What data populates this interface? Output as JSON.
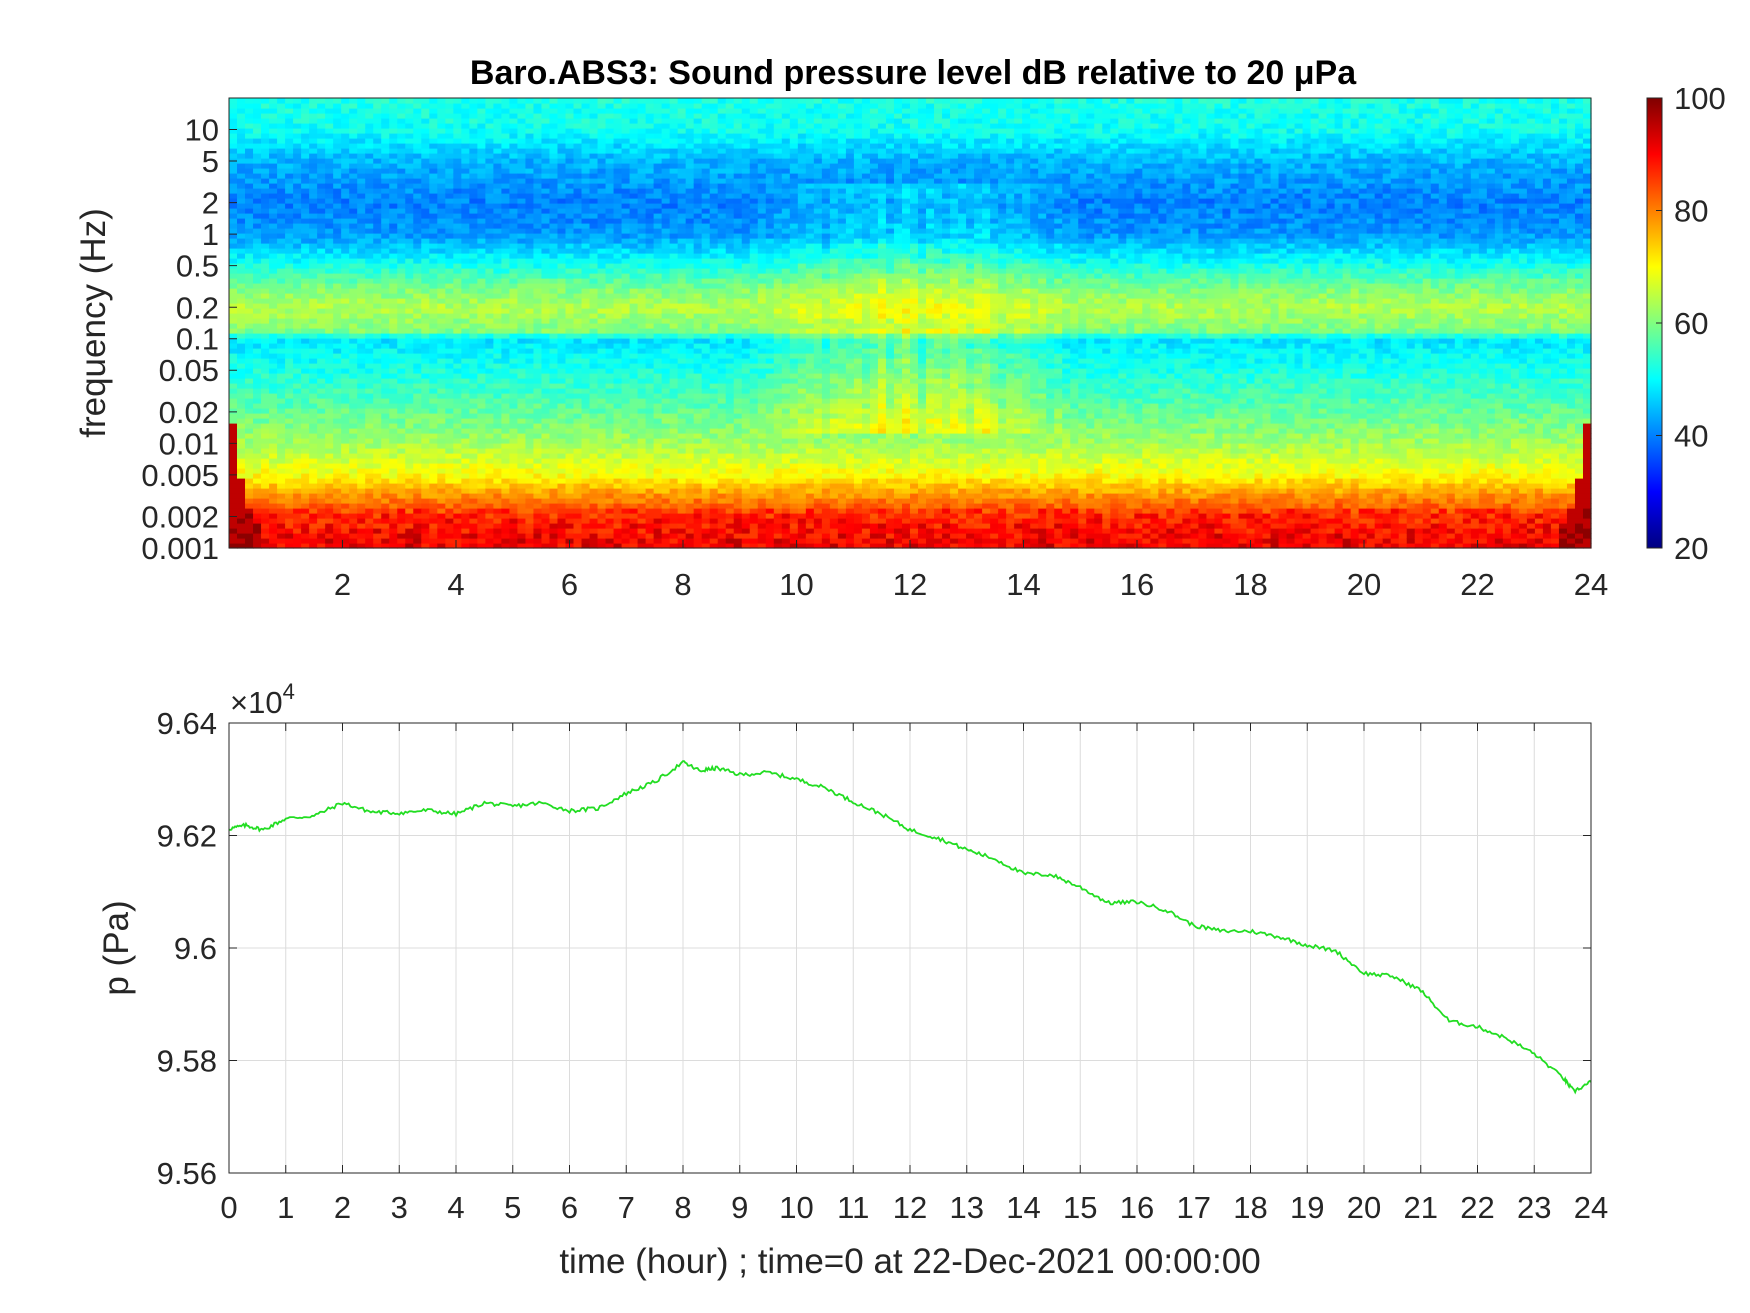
{
  "chart_data": [
    {
      "type": "heatmap",
      "title": "Baro.ABS3: Sound pressure level dB relative to 20 μPa",
      "xlabel": "",
      "ylabel": "frequency (Hz)",
      "x_range": [
        0,
        24
      ],
      "x_ticks": [
        2,
        4,
        6,
        8,
        10,
        12,
        14,
        16,
        18,
        20,
        22,
        24
      ],
      "y_scale": "log",
      "y_range": [
        0.001,
        20
      ],
      "y_ticks": [
        0.001,
        0.002,
        0.005,
        0.01,
        0.02,
        0.05,
        0.1,
        0.2,
        0.5,
        1,
        2,
        5,
        10
      ],
      "y_tick_labels": [
        "0.001",
        "0.002",
        "0.005",
        "0.01",
        "0.02",
        "0.05",
        "0.1",
        "0.2",
        "0.5",
        "1",
        "2",
        "5",
        "10"
      ],
      "colormap": "jet",
      "colorbar": {
        "range": [
          20,
          100
        ],
        "ticks": [
          20,
          40,
          60,
          80,
          100
        ],
        "labels": [
          "20",
          "40",
          "60",
          "80",
          "100"
        ]
      },
      "level_profile": [
        {
          "f": 0.001,
          "db": 90
        },
        {
          "f": 0.002,
          "db": 86
        },
        {
          "f": 0.003,
          "db": 80
        },
        {
          "f": 0.005,
          "db": 70
        },
        {
          "f": 0.01,
          "db": 63
        },
        {
          "f": 0.02,
          "db": 58
        },
        {
          "f": 0.05,
          "db": 52
        },
        {
          "f": 0.1,
          "db": 48
        },
        {
          "f": 0.12,
          "db": 60
        },
        {
          "f": 0.2,
          "db": 64
        },
        {
          "f": 0.3,
          "db": 60
        },
        {
          "f": 0.5,
          "db": 52
        },
        {
          "f": 1,
          "db": 42
        },
        {
          "f": 2,
          "db": 40
        },
        {
          "f": 5,
          "db": 44
        },
        {
          "f": 10,
          "db": 51
        },
        {
          "f": 20,
          "db": 52
        }
      ],
      "active_period_hours": [
        9,
        15
      ]
    },
    {
      "type": "line",
      "title": "",
      "xlabel": "time (hour) ; time=0 at 22-Dec-2021 00:00:00",
      "ylabel": "p (Pa)",
      "y_exponent_label": "×10",
      "y_exponent_power": "4",
      "xlim": [
        0,
        24
      ],
      "ylim": [
        95600,
        96400
      ],
      "x_ticks": [
        0,
        1,
        2,
        3,
        4,
        5,
        6,
        7,
        8,
        9,
        10,
        11,
        12,
        13,
        14,
        15,
        16,
        17,
        18,
        19,
        20,
        21,
        22,
        23,
        24
      ],
      "y_ticks": [
        95600,
        95800,
        96000,
        96200,
        96400
      ],
      "y_tick_labels": [
        "9.56",
        "9.58",
        "9.6",
        "9.62",
        "9.64"
      ],
      "grid": true,
      "color": "#22dd22",
      "series": [
        {
          "x": [
            0,
            0.3,
            0.6,
            1.0,
            1.5,
            2.0,
            2.5,
            3.0,
            3.5,
            4.0,
            4.5,
            5.0,
            5.5,
            6.0,
            6.5,
            7.0,
            7.5,
            8.0,
            8.3,
            8.6,
            9.0,
            9.5,
            10.0,
            10.5,
            11.0,
            11.5,
            12.0,
            12.5,
            13.0,
            13.5,
            14.0,
            14.5,
            15.0,
            15.5,
            16.0,
            16.5,
            17.0,
            17.5,
            18.0,
            18.5,
            19.0,
            19.5,
            20.0,
            20.5,
            21.0,
            21.5,
            22.0,
            22.5,
            23.0,
            23.5,
            23.7,
            24.0
          ],
          "y": [
            96212,
            96218,
            96210,
            96230,
            96235,
            96258,
            96242,
            96240,
            96245,
            96238,
            96258,
            96252,
            96258,
            96244,
            96248,
            96275,
            96295,
            96330,
            96315,
            96320,
            96308,
            96312,
            96300,
            96285,
            96260,
            96238,
            96210,
            96195,
            96175,
            96158,
            96132,
            96130,
            96108,
            96080,
            96082,
            96068,
            96040,
            96030,
            96030,
            96020,
            96005,
            95995,
            95955,
            95950,
            95925,
            95870,
            95860,
            95840,
            95812,
            95770,
            95745,
            95762
          ]
        }
      ]
    }
  ]
}
